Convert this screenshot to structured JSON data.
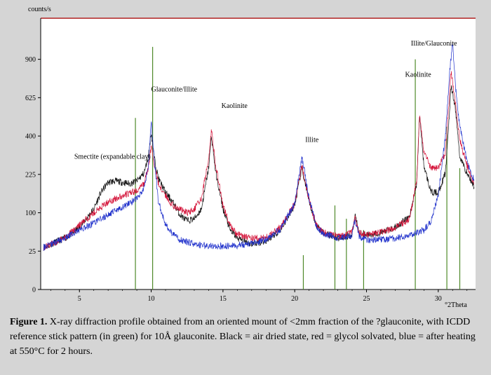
{
  "chart_data": {
    "type": "line",
    "title": "",
    "ylabel": "counts/s",
    "xlabel": "°2Theta",
    "xlim": [
      2.3,
      32.6
    ],
    "y_scale": "sqrt",
    "ylim": [
      0,
      1250
    ],
    "x_ticks": [
      5,
      10,
      15,
      20,
      25,
      30
    ],
    "y_ticks": [
      0,
      25,
      100,
      225,
      400,
      625,
      900
    ],
    "series": [
      {
        "color": "#111111",
        "x": [
          2.5,
          4,
          5,
          6,
          6.5,
          7,
          7.5,
          8,
          8.5,
          9,
          9.5,
          9.8,
          10,
          10.2,
          10.5,
          11,
          11.5,
          12,
          12.5,
          13,
          13.5,
          14,
          14.2,
          14.5,
          15,
          15.5,
          16,
          17,
          18,
          19,
          20,
          20.5,
          21,
          21.5,
          22,
          23,
          24,
          24.2,
          24.5,
          25,
          26,
          27,
          28,
          28.5,
          28.7,
          29,
          29.5,
          30,
          30.5,
          30.9,
          31.2,
          31.5,
          32,
          32.5
        ],
        "y": [
          30,
          45,
          65,
          110,
          160,
          195,
          200,
          195,
          190,
          200,
          230,
          300,
          420,
          300,
          210,
          160,
          130,
          95,
          80,
          85,
          110,
          250,
          400,
          230,
          110,
          60,
          45,
          35,
          40,
          60,
          120,
          250,
          130,
          70,
          55,
          45,
          50,
          95,
          55,
          50,
          55,
          65,
          90,
          190,
          520,
          260,
          160,
          160,
          230,
          700,
          550,
          300,
          230,
          180
        ]
      },
      {
        "color": "#d4143a",
        "x": [
          2.5,
          4,
          5,
          6,
          7,
          8,
          9,
          9.5,
          9.8,
          10,
          10.2,
          10.5,
          11,
          11.5,
          12,
          12.5,
          13,
          13.5,
          14,
          14.2,
          14.5,
          15,
          15.5,
          16,
          17,
          18,
          19,
          20,
          20.5,
          21,
          21.5,
          22,
          23,
          24,
          24.2,
          24.5,
          25,
          26,
          27,
          28,
          28.5,
          28.7,
          29,
          29.5,
          30,
          30.5,
          30.9,
          31.2,
          31.5,
          32,
          32.5
        ],
        "y": [
          30,
          45,
          70,
          100,
          130,
          150,
          165,
          190,
          250,
          350,
          270,
          190,
          150,
          120,
          110,
          100,
          110,
          140,
          290,
          430,
          260,
          120,
          70,
          52,
          45,
          45,
          65,
          125,
          260,
          135,
          72,
          55,
          48,
          55,
          90,
          55,
          50,
          55,
          65,
          85,
          200,
          520,
          320,
          250,
          250,
          320,
          810,
          580,
          380,
          260,
          190
        ]
      },
      {
        "color": "#2233cc",
        "x": [
          2.5,
          3,
          4,
          5,
          6,
          7,
          8,
          9,
          9.5,
          9.8,
          10,
          10.2,
          10.5,
          11,
          11.5,
          12,
          13,
          14,
          15,
          16,
          17,
          18,
          19,
          20,
          20.5,
          21,
          21.5,
          22,
          23,
          24,
          24.2,
          24.5,
          25,
          26,
          27,
          28,
          28.5,
          29,
          29.5,
          30,
          30.5,
          30.8,
          31,
          31.2,
          31.5,
          32,
          32.5
        ],
        "y": [
          30,
          35,
          45,
          60,
          75,
          95,
          115,
          140,
          175,
          260,
          480,
          300,
          130,
          72,
          52,
          42,
          35,
          32,
          32,
          33,
          36,
          42,
          62,
          125,
          300,
          140,
          70,
          52,
          45,
          50,
          80,
          48,
          42,
          42,
          45,
          50,
          55,
          60,
          80,
          150,
          400,
          800,
          1050,
          700,
          450,
          280,
          200
        ]
      }
    ],
    "reference_sticks": {
      "color": "#4f8a2a",
      "label": "ICDD 10Å glauconite",
      "x": [
        8.9,
        10.1,
        20.6,
        22.8,
        23.6,
        24.8,
        28.4,
        30.6,
        31.5
      ],
      "y": [
        500,
        1000,
        20,
        120,
        85,
        60,
        900,
        450,
        250
      ]
    },
    "annotations": [
      {
        "text": "Smectite (expandable clay)",
        "x": 7.3,
        "y": 290
      },
      {
        "text": "Glauconite/Illite",
        "x": 11.6,
        "y": 665
      },
      {
        "text": "Kaolinite",
        "x": 15.8,
        "y": 560
      },
      {
        "text": "Illite",
        "x": 21.2,
        "y": 370
      },
      {
        "text": "Kaolinite",
        "x": 28.6,
        "y": 770
      },
      {
        "text": "Illite/Glauconite",
        "x": 29.7,
        "y": 1010
      }
    ]
  },
  "caption": {
    "label": "Figure 1.",
    "text": " X-ray diffraction profile obtained from an oriented mount of <2mm fraction of the ?glauconite, with ICDD reference stick pattern (in green) for 10Å glauconite. Black = air dried state, red = glycol solvated, blue = after heating at 550°C for 2 hours."
  }
}
